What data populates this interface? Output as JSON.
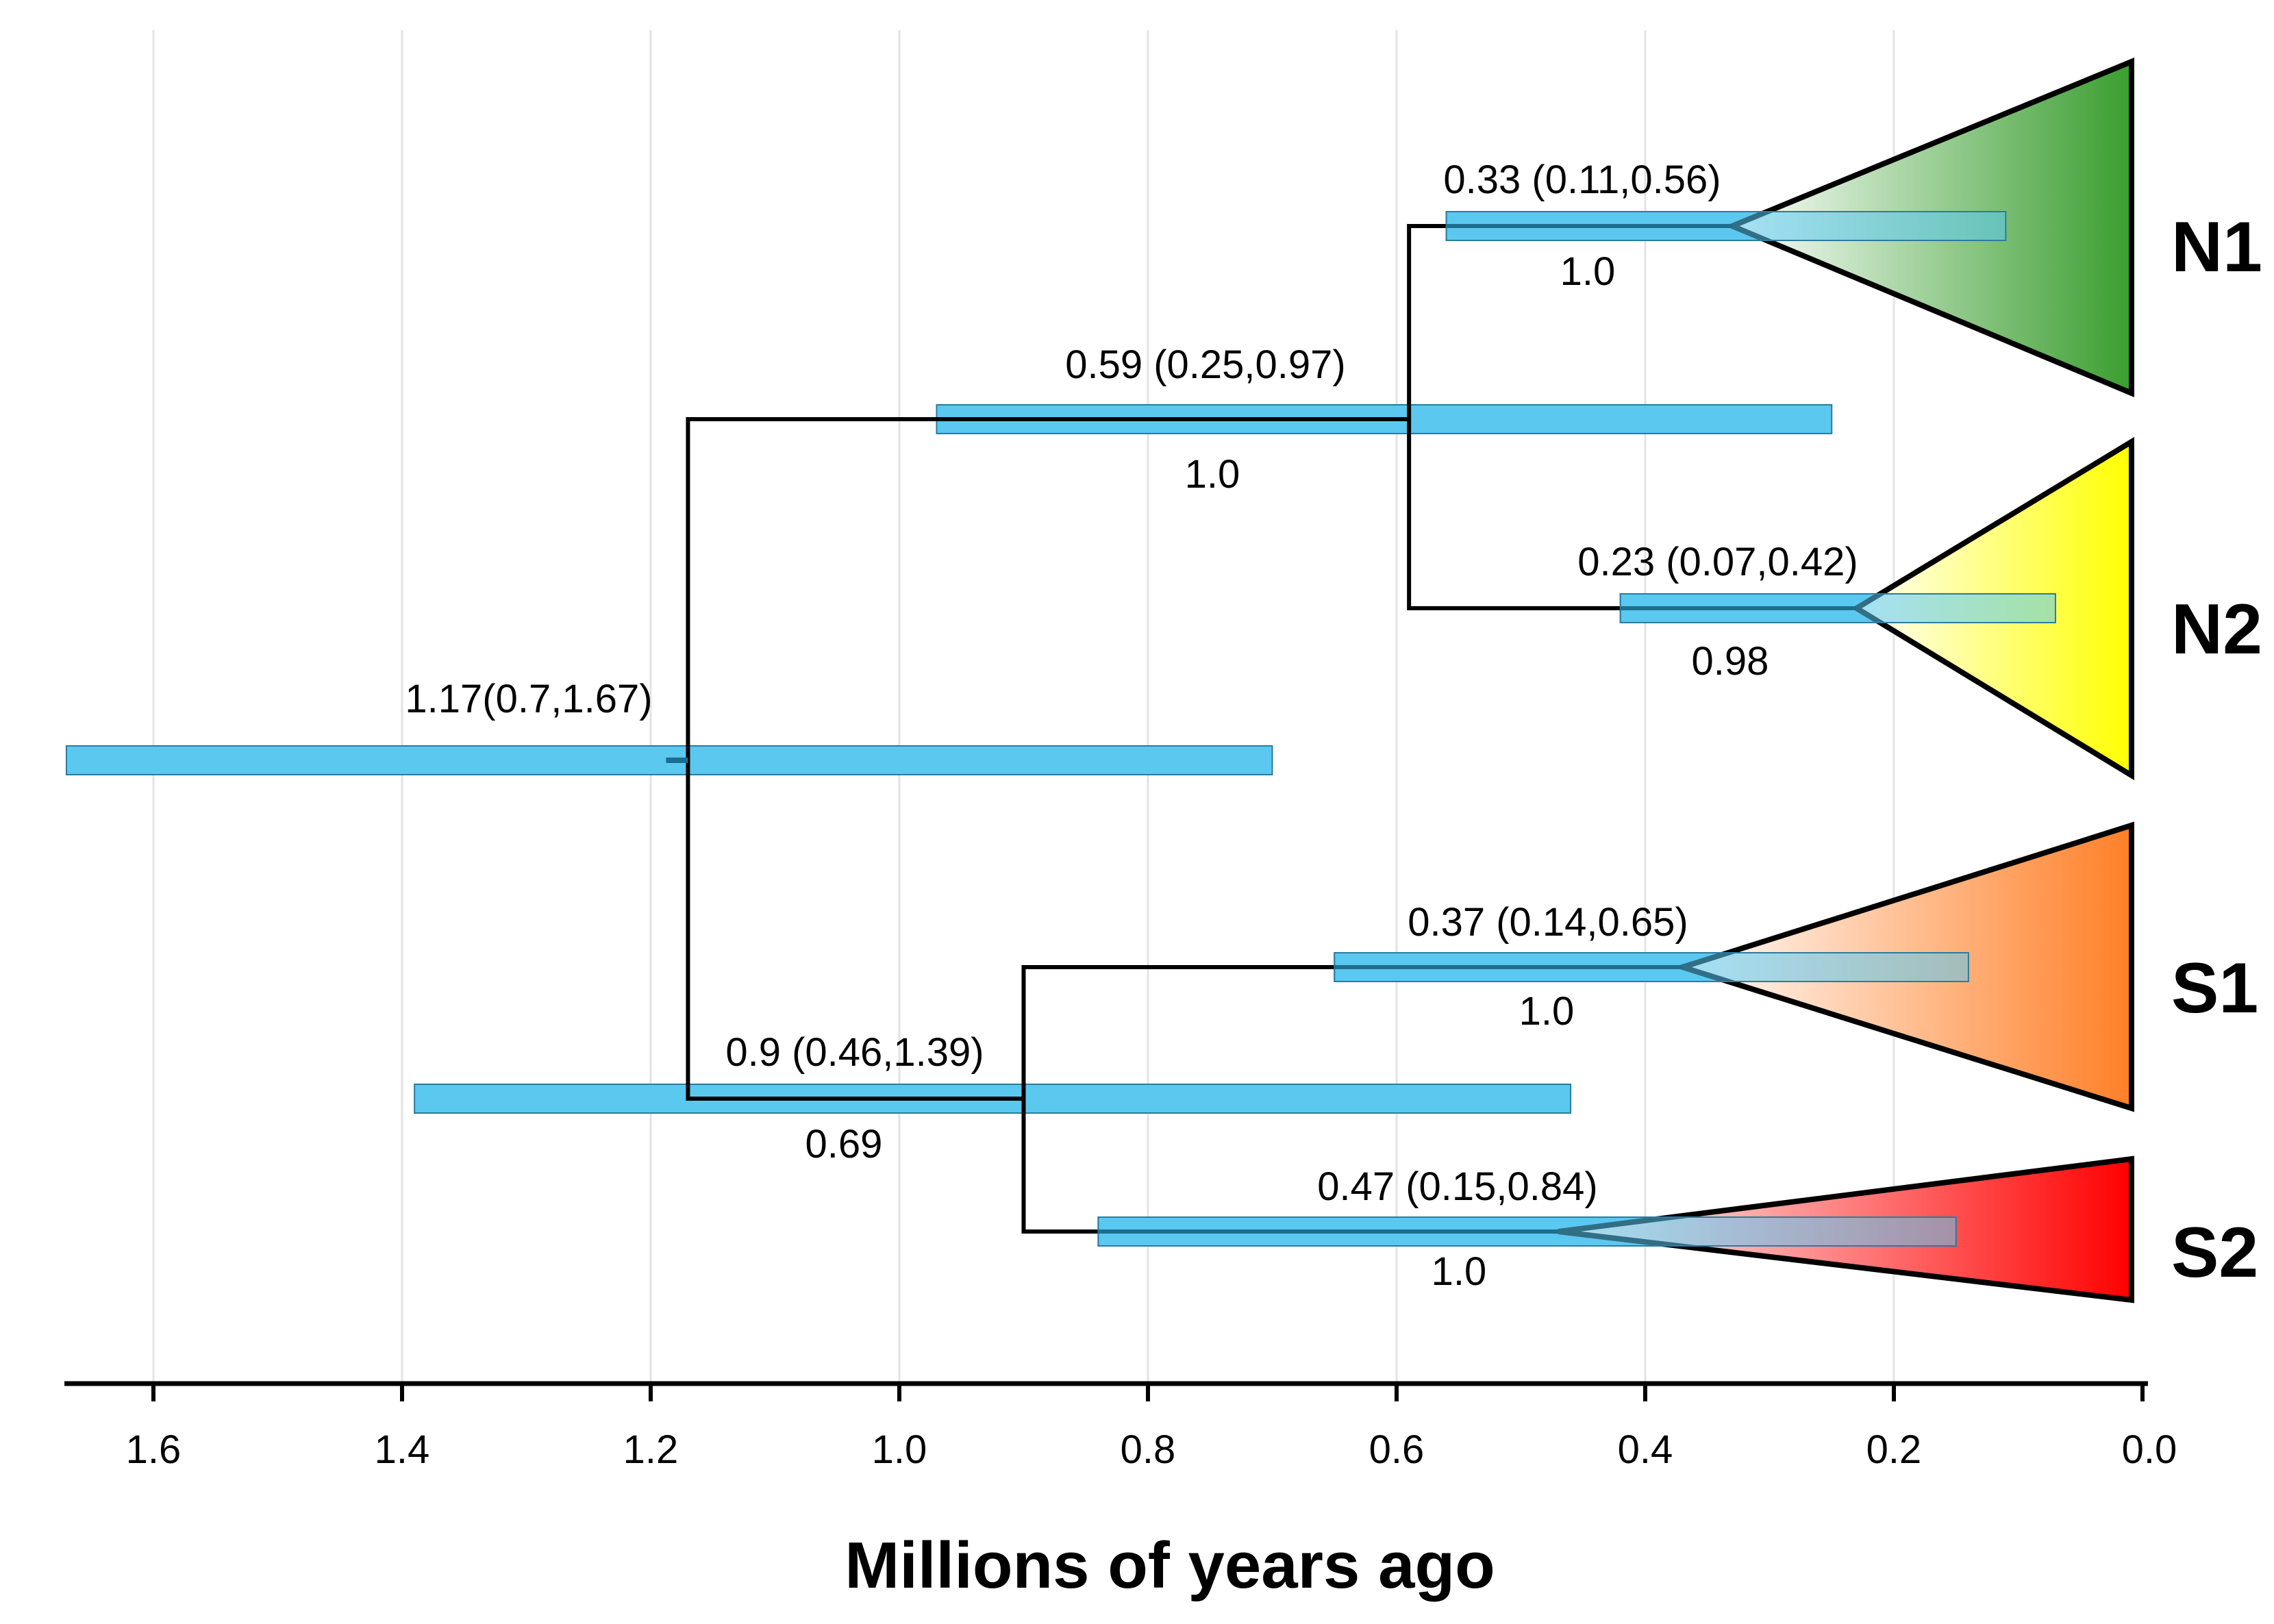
{
  "chart_data": {
    "type": "phylogenetic-tree",
    "xlabel": "Millions of years ago",
    "x_axis": {
      "reversed": true,
      "ticks": [
        1.6,
        1.4,
        1.2,
        1.0,
        0.8,
        0.6,
        0.4,
        0.2,
        0.0
      ],
      "tick_labels": [
        "1.6",
        "1.4",
        "1.2",
        "1.0",
        "0.8",
        "0.6",
        "0.4",
        "0.2",
        "0.0"
      ],
      "grid": true
    },
    "clades": [
      {
        "name": "N1",
        "color": "#3a9e2f"
      },
      {
        "name": "N2",
        "color": "#ffff00"
      },
      {
        "name": "S1",
        "color": "#ff7f27"
      },
      {
        "name": "S2",
        "color": "#ff0000"
      }
    ],
    "nodes": [
      {
        "id": "root",
        "age": 1.17,
        "hpd_low": 0.7,
        "hpd_high": 1.67,
        "label": "1.17(0.7,1.67)",
        "posterior": null,
        "posterior_label": ""
      },
      {
        "id": "N",
        "age": 0.59,
        "hpd_low": 0.25,
        "hpd_high": 0.97,
        "label": "0.59 (0.25,0.97)",
        "posterior": 1.0,
        "posterior_label": "1.0"
      },
      {
        "id": "N1",
        "age": 0.33,
        "hpd_low": 0.11,
        "hpd_high": 0.56,
        "label": "0.33 (0.11,0.56)",
        "posterior": 1.0,
        "posterior_label": "1.0"
      },
      {
        "id": "N2",
        "age": 0.23,
        "hpd_low": 0.07,
        "hpd_high": 0.42,
        "label": "0.23 (0.07,0.42)",
        "posterior": 0.98,
        "posterior_label": "0.98"
      },
      {
        "id": "S",
        "age": 0.9,
        "hpd_low": 0.46,
        "hpd_high": 1.39,
        "label": "0.9 (0.46,1.39)",
        "posterior": 0.69,
        "posterior_label": "0.69"
      },
      {
        "id": "S1",
        "age": 0.37,
        "hpd_low": 0.14,
        "hpd_high": 0.65,
        "label": "0.37 (0.14,0.65)",
        "posterior": 1.0,
        "posterior_label": "1.0"
      },
      {
        "id": "S2",
        "age": 0.47,
        "hpd_low": 0.15,
        "hpd_high": 0.84,
        "label": "0.47 (0.15,0.84)",
        "posterior": 1.0,
        "posterior_label": "1.0"
      }
    ],
    "hpd_bar_color": "#5bc8f0",
    "branch_color": "#000000"
  }
}
